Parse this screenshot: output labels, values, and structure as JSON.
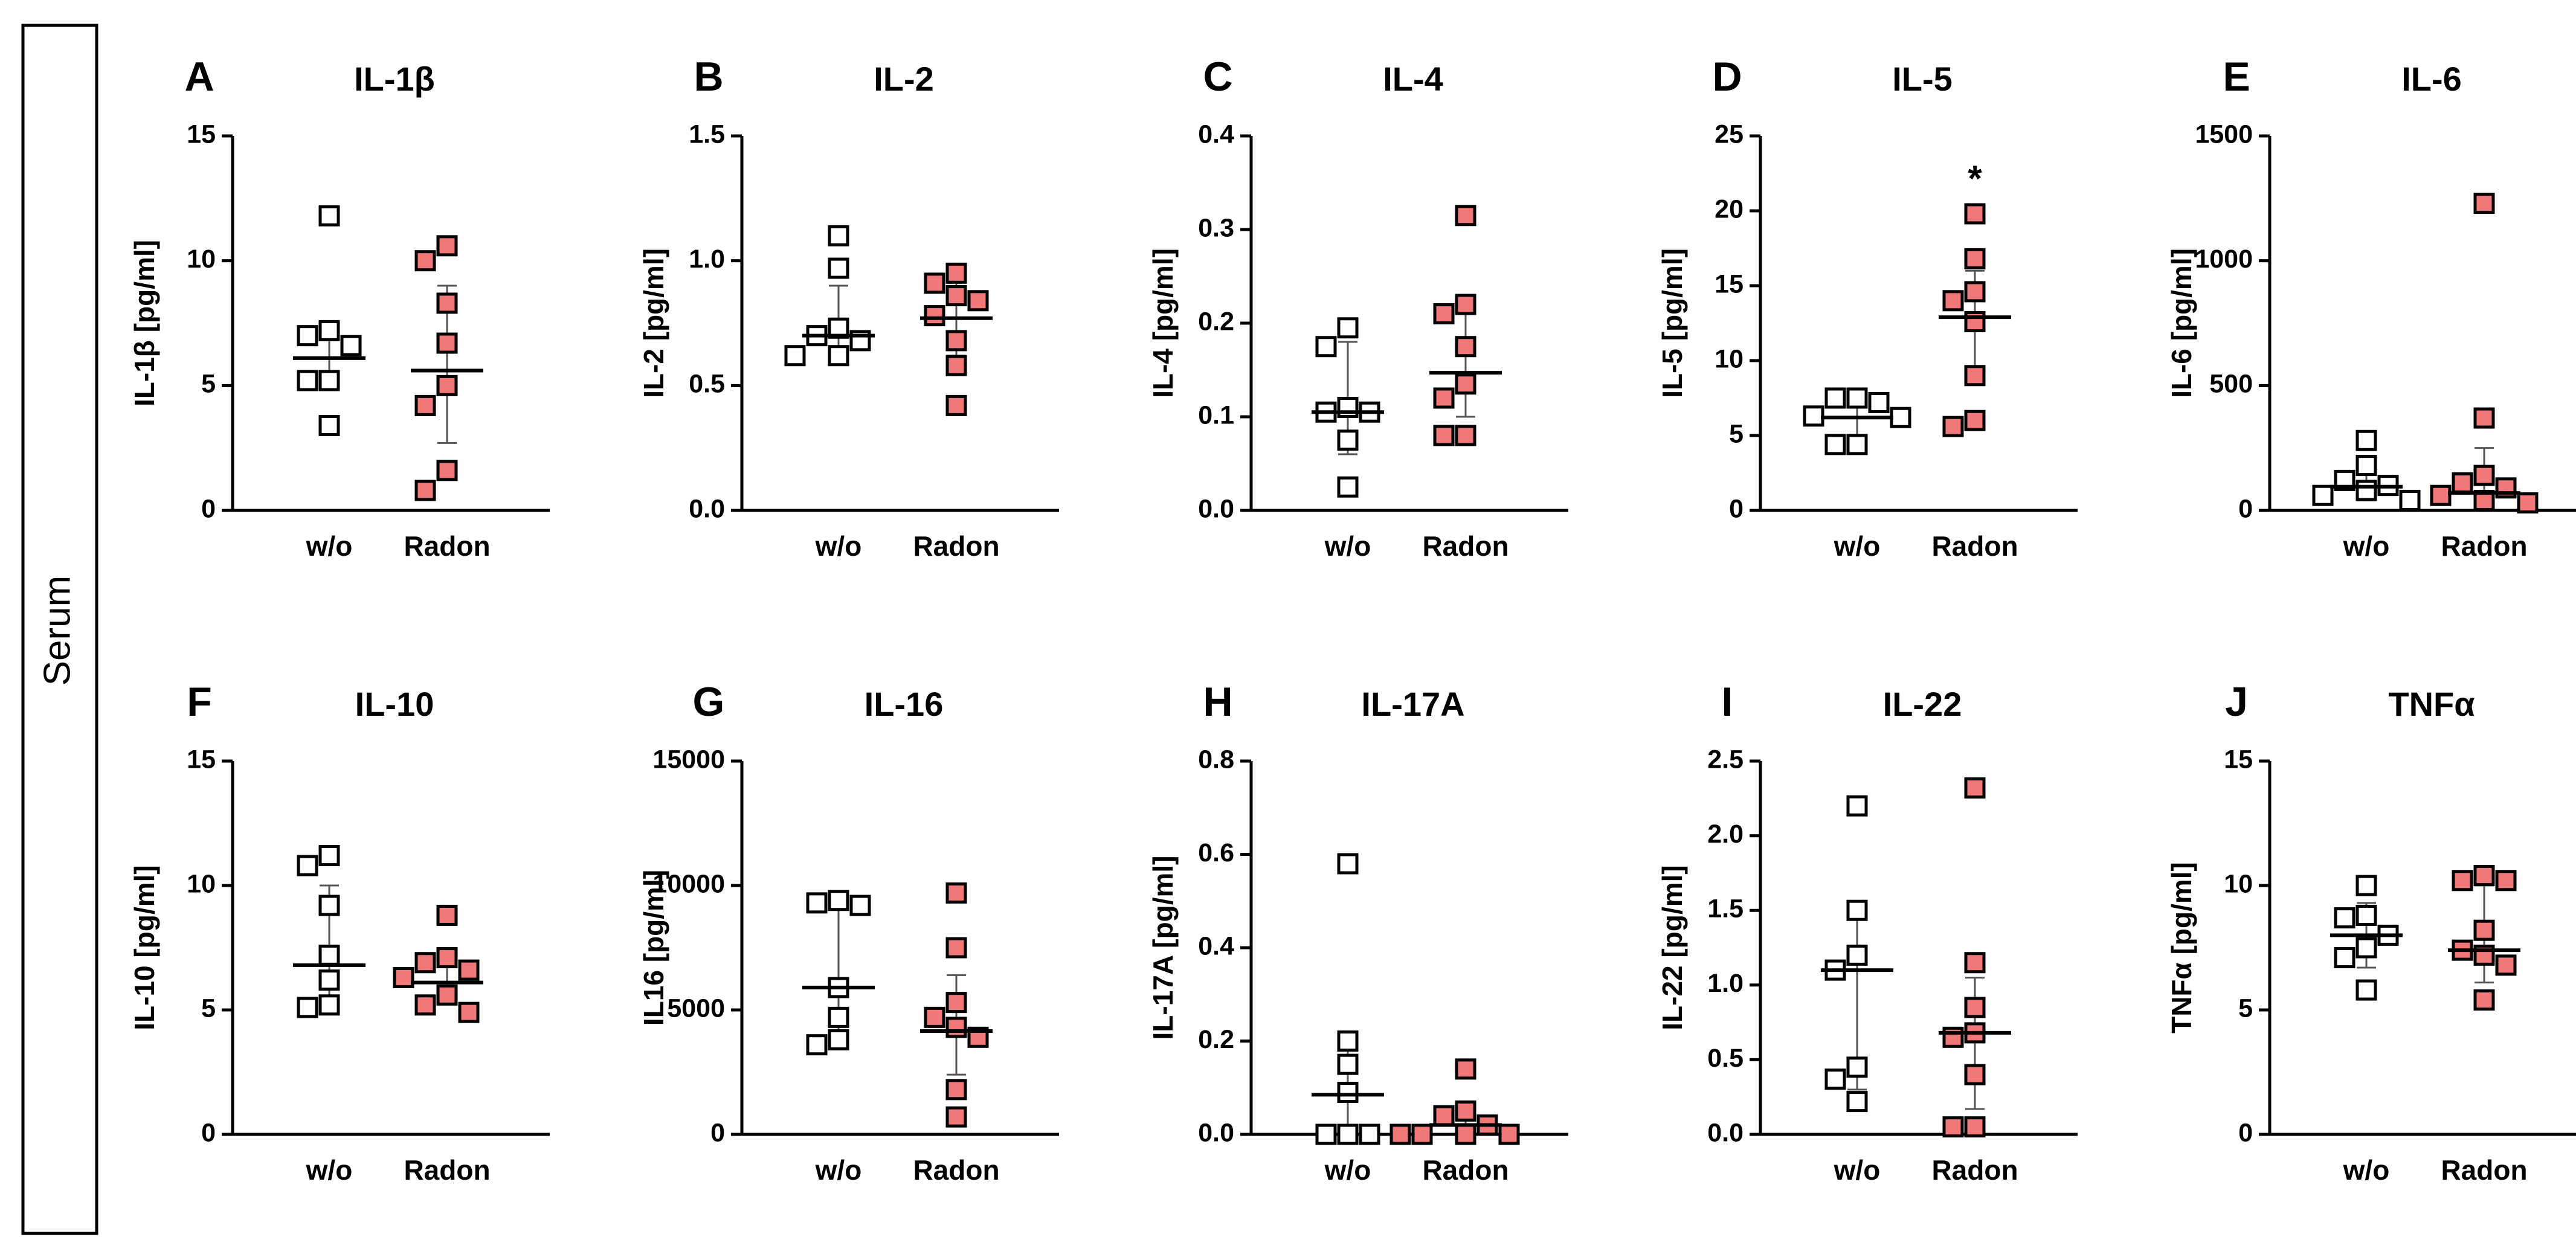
{
  "figure": {
    "side_label": "Serum"
  },
  "colors": {
    "wo_fill": "#ffffff",
    "radon_fill": "#f07878",
    "marker_stroke": "#000000"
  },
  "chart_data": [
    {
      "type": "scatter",
      "letter": "A",
      "title": "IL-1β",
      "ylabel": "IL-1β [pg/ml]",
      "ylim": [
        0,
        15
      ],
      "yticks": [
        0,
        5,
        10,
        15
      ],
      "ytick_labels": [
        "0",
        "5",
        "10",
        "15"
      ],
      "categories": [
        "w/o",
        "Radon"
      ],
      "series": [
        {
          "name": "w/o",
          "values": [
            11.8,
            7.2,
            7.0,
            6.6,
            5.2,
            5.2,
            3.4
          ],
          "mean": 6.1,
          "sd_low": 5.0,
          "sd_high": 7.2
        },
        {
          "name": "Radon",
          "values": [
            10.6,
            10.0,
            8.3,
            6.7,
            5.0,
            4.2,
            1.6,
            0.8
          ],
          "mean": 5.6,
          "sd_low": 2.7,
          "sd_high": 9.0
        }
      ],
      "significance": ""
    },
    {
      "type": "scatter",
      "letter": "B",
      "title": "IL-2",
      "ylabel": "IL-2 [pg/ml]",
      "ylim": [
        0,
        1.5
      ],
      "yticks": [
        0,
        0.5,
        1.0,
        1.5
      ],
      "ytick_labels": [
        "0.0",
        "0.5",
        "1.0",
        "1.5"
      ],
      "categories": [
        "w/o",
        "Radon"
      ],
      "series": [
        {
          "name": "w/o",
          "values": [
            1.1,
            0.97,
            0.73,
            0.7,
            0.68,
            0.62,
            0.62
          ],
          "mean": 0.7,
          "sd_low": 0.6,
          "sd_high": 0.9
        },
        {
          "name": "Radon",
          "values": [
            0.95,
            0.91,
            0.86,
            0.84,
            0.78,
            0.68,
            0.58,
            0.42
          ],
          "mean": 0.77,
          "sd_low": 0.62,
          "sd_high": 0.92
        }
      ],
      "significance": ""
    },
    {
      "type": "scatter",
      "letter": "C",
      "title": "IL-4",
      "ylabel": "IL-4 [pg/ml]",
      "ylim": [
        0,
        0.4
      ],
      "yticks": [
        0,
        0.1,
        0.2,
        0.3,
        0.4
      ],
      "ytick_labels": [
        "0.0",
        "0.1",
        "0.2",
        "0.3",
        "0.4"
      ],
      "categories": [
        "w/o",
        "Radon"
      ],
      "series": [
        {
          "name": "w/o",
          "values": [
            0.195,
            0.175,
            0.11,
            0.105,
            0.105,
            0.075,
            0.025
          ],
          "mean": 0.105,
          "sd_low": 0.06,
          "sd_high": 0.18
        },
        {
          "name": "Radon",
          "values": [
            0.315,
            0.22,
            0.21,
            0.175,
            0.135,
            0.12,
            0.08,
            0.08
          ],
          "mean": 0.147,
          "sd_low": 0.1,
          "sd_high": 0.21
        },
        {
          "name": "",
          "values": []
        }
      ],
      "significance": ""
    },
    {
      "type": "scatter",
      "letter": "D",
      "title": "IL-5",
      "ylabel": "IL-5 [pg/ml]",
      "ylim": [
        0,
        25
      ],
      "yticks": [
        0,
        5,
        10,
        15,
        20,
        25
      ],
      "ytick_labels": [
        "0",
        "5",
        "10",
        "15",
        "20",
        "25"
      ],
      "categories": [
        "w/o",
        "Radon"
      ],
      "series": [
        {
          "name": "w/o",
          "values": [
            7.5,
            7.5,
            7.2,
            6.3,
            6.2,
            4.4,
            4.4
          ],
          "mean": 6.2,
          "sd_low": 5.0,
          "sd_high": 7.4
        },
        {
          "name": "Radon",
          "values": [
            19.8,
            16.8,
            14.6,
            14.0,
            12.6,
            9.0,
            6.0,
            5.6
          ],
          "mean": 12.9,
          "sd_low": 8.4,
          "sd_high": 16.0
        }
      ],
      "significance": "*"
    },
    {
      "type": "scatter",
      "letter": "E",
      "title": "IL-6",
      "ylabel": "IL-6 [pg/ml]",
      "ylim": [
        0,
        1500
      ],
      "yticks": [
        0,
        500,
        1000,
        1500
      ],
      "ytick_labels": [
        "0",
        "500",
        "1000",
        "1500"
      ],
      "categories": [
        "w/o",
        "Radon"
      ],
      "series": [
        {
          "name": "w/o",
          "values": [
            280,
            180,
            120,
            100,
            80,
            60,
            40
          ],
          "mean": 95,
          "sd_low": 40,
          "sd_high": 170
        },
        {
          "name": "Radon",
          "values": [
            1230,
            370,
            140,
            110,
            90,
            60,
            40,
            30
          ],
          "mean": 70,
          "sd_low": 20,
          "sd_high": 250
        }
      ],
      "significance": ""
    },
    {
      "type": "scatter",
      "letter": "F",
      "title": "IL-10",
      "ylabel": "IL-10 [pg/ml]",
      "ylim": [
        0,
        15
      ],
      "yticks": [
        0,
        5,
        10,
        15
      ],
      "ytick_labels": [
        "0",
        "5",
        "10",
        "15"
      ],
      "categories": [
        "w/o",
        "Radon"
      ],
      "series": [
        {
          "name": "w/o",
          "values": [
            11.2,
            10.8,
            9.2,
            7.2,
            6.2,
            5.2,
            5.1
          ],
          "mean": 6.8,
          "sd_low": 5.0,
          "sd_high": 10.0
        },
        {
          "name": "Radon",
          "values": [
            8.8,
            7.1,
            6.9,
            6.6,
            6.3,
            5.6,
            5.2,
            4.9
          ],
          "mean": 6.1,
          "sd_low": 5.3,
          "sd_high": 7.0
        }
      ],
      "significance": ""
    },
    {
      "type": "scatter",
      "letter": "G",
      "title": "IL-16",
      "ylabel": "IL16 [pg/ml]",
      "ylim": [
        0,
        15000
      ],
      "yticks": [
        0,
        5000,
        10000,
        15000
      ],
      "ytick_labels": [
        "0",
        "5000",
        "10000",
        "15000"
      ],
      "categories": [
        "w/o",
        "Radon"
      ],
      "series": [
        {
          "name": "w/o",
          "values": [
            9400,
            9300,
            9200,
            5900,
            4700,
            3800,
            3600
          ],
          "mean": 5900,
          "sd_low": 3700,
          "sd_high": 9300
        },
        {
          "name": "Radon",
          "values": [
            9700,
            7500,
            5300,
            4700,
            4300,
            3900,
            1800,
            700
          ],
          "mean": 4150,
          "sd_low": 2400,
          "sd_high": 6400
        }
      ],
      "significance": ""
    },
    {
      "type": "scatter",
      "letter": "H",
      "title": "IL-17A",
      "ylabel": "IL-17A [pg/ml]",
      "ylim": [
        0,
        0.8
      ],
      "yticks": [
        0,
        0.2,
        0.4,
        0.6,
        0.8
      ],
      "ytick_labels": [
        "0.0",
        "0.2",
        "0.4",
        "0.6",
        "0.8"
      ],
      "categories": [
        "w/o",
        "Radon"
      ],
      "series": [
        {
          "name": "w/o",
          "values": [
            0.58,
            0.2,
            0.15,
            0.09,
            0.0,
            0.0,
            0.0
          ],
          "mean": 0.085,
          "sd_low": 0.0,
          "sd_high": 0.2
        },
        {
          "name": "Radon",
          "values": [
            0.14,
            0.05,
            0.04,
            0.02,
            0.0,
            0.0,
            0.0,
            0.0
          ],
          "mean": 0.02,
          "sd_low": 0.0,
          "sd_high": 0.045
        }
      ],
      "significance": ""
    },
    {
      "type": "scatter",
      "letter": "I",
      "title": "IL-22",
      "ylabel": "IL-22 [pg/ml]",
      "ylim": [
        0,
        2.5
      ],
      "yticks": [
        0,
        0.5,
        1.0,
        1.5,
        2.0,
        2.5
      ],
      "ytick_labels": [
        "0.0",
        "0.5",
        "1.0",
        "1.5",
        "2.0",
        "2.5"
      ],
      "categories": [
        "w/o",
        "Radon"
      ],
      "series": [
        {
          "name": "w/o",
          "values": [
            2.2,
            1.5,
            1.2,
            1.1,
            0.45,
            0.37,
            0.22
          ],
          "mean": 1.1,
          "sd_low": 0.3,
          "sd_high": 1.45
        },
        {
          "name": "Radon",
          "values": [
            2.32,
            1.15,
            0.85,
            0.68,
            0.65,
            0.4,
            0.05,
            0.05
          ],
          "mean": 0.68,
          "sd_low": 0.17,
          "sd_high": 1.05
        }
      ],
      "significance": ""
    },
    {
      "type": "scatter",
      "letter": "J",
      "title": "TNFα",
      "ylabel": "TNFα [pg/ml]",
      "ylim": [
        0,
        15
      ],
      "yticks": [
        0,
        5,
        10,
        15
      ],
      "ytick_labels": [
        "0",
        "5",
        "10",
        "15"
      ],
      "categories": [
        "w/o",
        "Radon"
      ],
      "series": [
        {
          "name": "w/o",
          "values": [
            10.0,
            8.8,
            8.7,
            8.0,
            7.5,
            7.1,
            5.8
          ],
          "mean": 8.0,
          "sd_low": 6.7,
          "sd_high": 9.3
        },
        {
          "name": "Radon",
          "values": [
            10.4,
            10.2,
            10.2,
            8.2,
            7.4,
            7.2,
            6.8,
            5.4
          ],
          "mean": 7.4,
          "sd_low": 6.1,
          "sd_high": 10.0
        }
      ],
      "significance": ""
    }
  ]
}
